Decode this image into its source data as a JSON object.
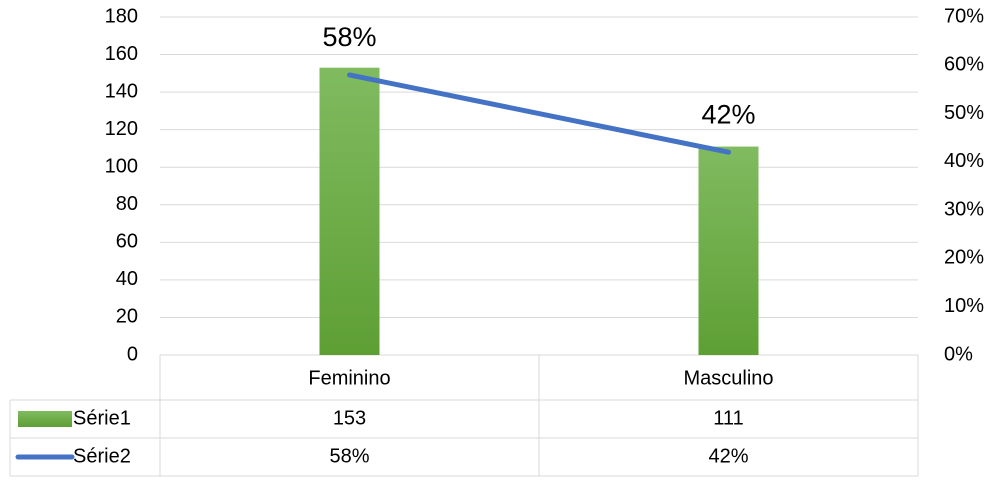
{
  "chart_data": {
    "type": "bar",
    "categories": [
      "Feminino",
      "Masculino"
    ],
    "series": [
      {
        "name": "Série1",
        "type": "bar",
        "color": "#70ad47",
        "values": [
          153,
          111
        ]
      },
      {
        "name": "Série2",
        "type": "line",
        "axis": "y2",
        "color": "#4472c4",
        "values": [
          58,
          42
        ],
        "value_labels": [
          "58%",
          "42%"
        ]
      }
    ],
    "ylim": [
      0,
      180
    ],
    "yticks": [
      0,
      20,
      40,
      60,
      80,
      100,
      120,
      140,
      160,
      180
    ],
    "y2lim": [
      0,
      70
    ],
    "y2ticks": [
      {
        "value": 0,
        "label": "0%"
      },
      {
        "value": 10,
        "label": "10%"
      },
      {
        "value": 20,
        "label": "20%"
      },
      {
        "value": 30,
        "label": "30%"
      },
      {
        "value": 40,
        "label": "40%"
      },
      {
        "value": 50,
        "label": "50%"
      },
      {
        "value": 60,
        "label": "60%"
      },
      {
        "value": 70,
        "label": "70%"
      }
    ],
    "grid": true,
    "data_table": true
  }
}
